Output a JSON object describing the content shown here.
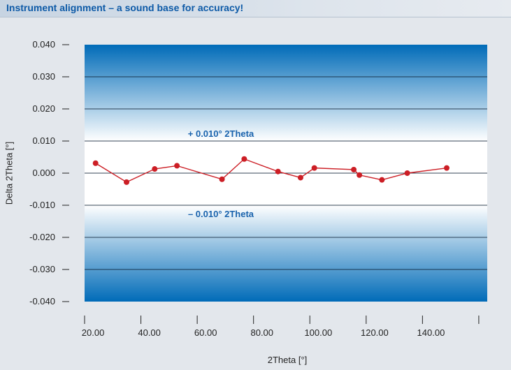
{
  "header": {
    "title": "Instrument alignment – a sound base for accuracy!"
  },
  "colors": {
    "band_dark": "#006bb8",
    "band_light": "#ffffff",
    "series": "#cc1e25",
    "band_label": "#1a63ad",
    "header_text": "#0d5aa7"
  },
  "chart_data": {
    "type": "line",
    "title": "",
    "xlabel": "2Theta [°]",
    "ylabel": "Delta 2Theta [°]",
    "xlim": [
      17,
      160
    ],
    "ylim": [
      -0.04,
      0.04
    ],
    "x_ticks": [
      "20.00",
      "40.00",
      "60.00",
      "80.00",
      "100.00",
      "120.00",
      "140.00"
    ],
    "x_tick_values": [
      20,
      40,
      60,
      80,
      100,
      120,
      140
    ],
    "y_ticks": [
      "0.040",
      "0.030",
      "0.020",
      "0.010",
      "0.000",
      "-0.010",
      "-0.020",
      "-0.030",
      "-0.040"
    ],
    "y_tick_values": [
      0.04,
      0.03,
      0.02,
      0.01,
      0,
      -0.01,
      -0.02,
      -0.03,
      -0.04
    ],
    "tolerance_band": [
      -0.01,
      0.01
    ],
    "annotations": {
      "upper": "+ 0.010° 2Theta",
      "lower": "– 0.010° 2Theta"
    },
    "grid": "horizontal",
    "series": [
      {
        "x": [
          20.9,
          31.9,
          41.9,
          49.8,
          65.8,
          73.7,
          85.7,
          93.7,
          98.6,
          112.6,
          114.6,
          122.6,
          131.6,
          145.6
        ],
        "y": [
          0.0031,
          -0.0028,
          0.0013,
          0.0023,
          -0.0019,
          0.0044,
          0.0005,
          -0.0014,
          0.0016,
          0.0011,
          -0.0006,
          -0.0021,
          0.0,
          0.0016
        ]
      }
    ]
  }
}
